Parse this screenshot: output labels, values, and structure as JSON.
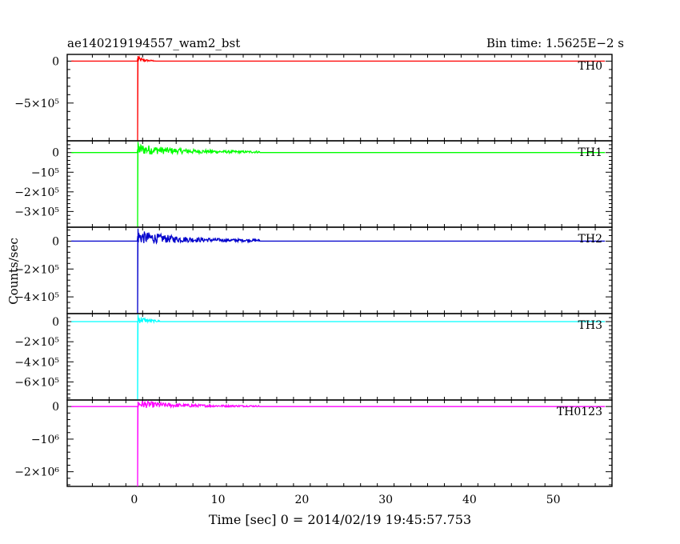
{
  "header": {
    "title": "ae140219194557_wam2_bst",
    "bin_time": "Bin time: 1.5625E−2 s"
  },
  "chart_data": {
    "type": "line",
    "xlabel": "Time [sec] 0 = 2014/02/19 19:45:57.753",
    "ylabel": "Counts/sec",
    "xlim": [
      -8,
      57
    ],
    "x_ticks": [
      0,
      10,
      20,
      30,
      40,
      50
    ],
    "grid": false,
    "panels": [
      {
        "name": "TH0",
        "color": "#ff0000",
        "ylim": [
          -950000,
          80000
        ],
        "y_ticks": [
          {
            "value": 0,
            "label": "0"
          },
          {
            "value": -500000,
            "label": "−5×10⁵"
          }
        ],
        "baseline": 0,
        "spike": {
          "x": 0.4,
          "min": -950000,
          "max": 60000
        },
        "noise_until": 2.5,
        "noise_amp": 15000
      },
      {
        "name": "TH1",
        "color": "#00ff00",
        "ylim": [
          -380000,
          60000
        ],
        "y_ticks": [
          {
            "value": 0,
            "label": "0"
          },
          {
            "value": -100000,
            "label": "−10⁵"
          },
          {
            "value": -200000,
            "label": "−2×10⁵"
          },
          {
            "value": -300000,
            "label": "−3×10⁵"
          }
        ],
        "baseline": 0,
        "spike": {
          "x": 0.4,
          "min": -380000,
          "max": 55000
        },
        "noise_until": 15,
        "noise_amp": 12000
      },
      {
        "name": "TH2",
        "color": "#0000cc",
        "ylim": [
          -520000,
          100000
        ],
        "y_ticks": [
          {
            "value": 0,
            "label": "0"
          },
          {
            "value": -200000,
            "label": "−2×10⁵"
          },
          {
            "value": -400000,
            "label": "−4×10⁵"
          }
        ],
        "baseline": 0,
        "spike": {
          "x": 0.4,
          "min": -520000,
          "max": 90000
        },
        "noise_until": 15,
        "noise_amp": 20000
      },
      {
        "name": "TH3",
        "color": "#00ffff",
        "ylim": [
          -780000,
          80000
        ],
        "y_ticks": [
          {
            "value": 0,
            "label": "0"
          },
          {
            "value": -200000,
            "label": "−2×10⁵"
          },
          {
            "value": -400000,
            "label": "−4×10⁵"
          },
          {
            "value": -600000,
            "label": "−6×10⁵"
          }
        ],
        "baseline": 0,
        "spike": {
          "x": 0.4,
          "min": -780000,
          "max": 70000
        },
        "noise_until": 3,
        "noise_amp": 20000
      },
      {
        "name": "TH0123",
        "color": "#ff00ff",
        "ylim": [
          -2450000,
          200000
        ],
        "y_ticks": [
          {
            "value": 0,
            "label": "0"
          },
          {
            "value": -1000000,
            "label": "−10⁶"
          },
          {
            "value": -2000000,
            "label": "−2×10⁶"
          }
        ],
        "baseline": 0,
        "spike": {
          "x": 0.4,
          "min": -2450000,
          "max": 150000
        },
        "noise_until": 15,
        "noise_amp": 50000
      }
    ]
  }
}
